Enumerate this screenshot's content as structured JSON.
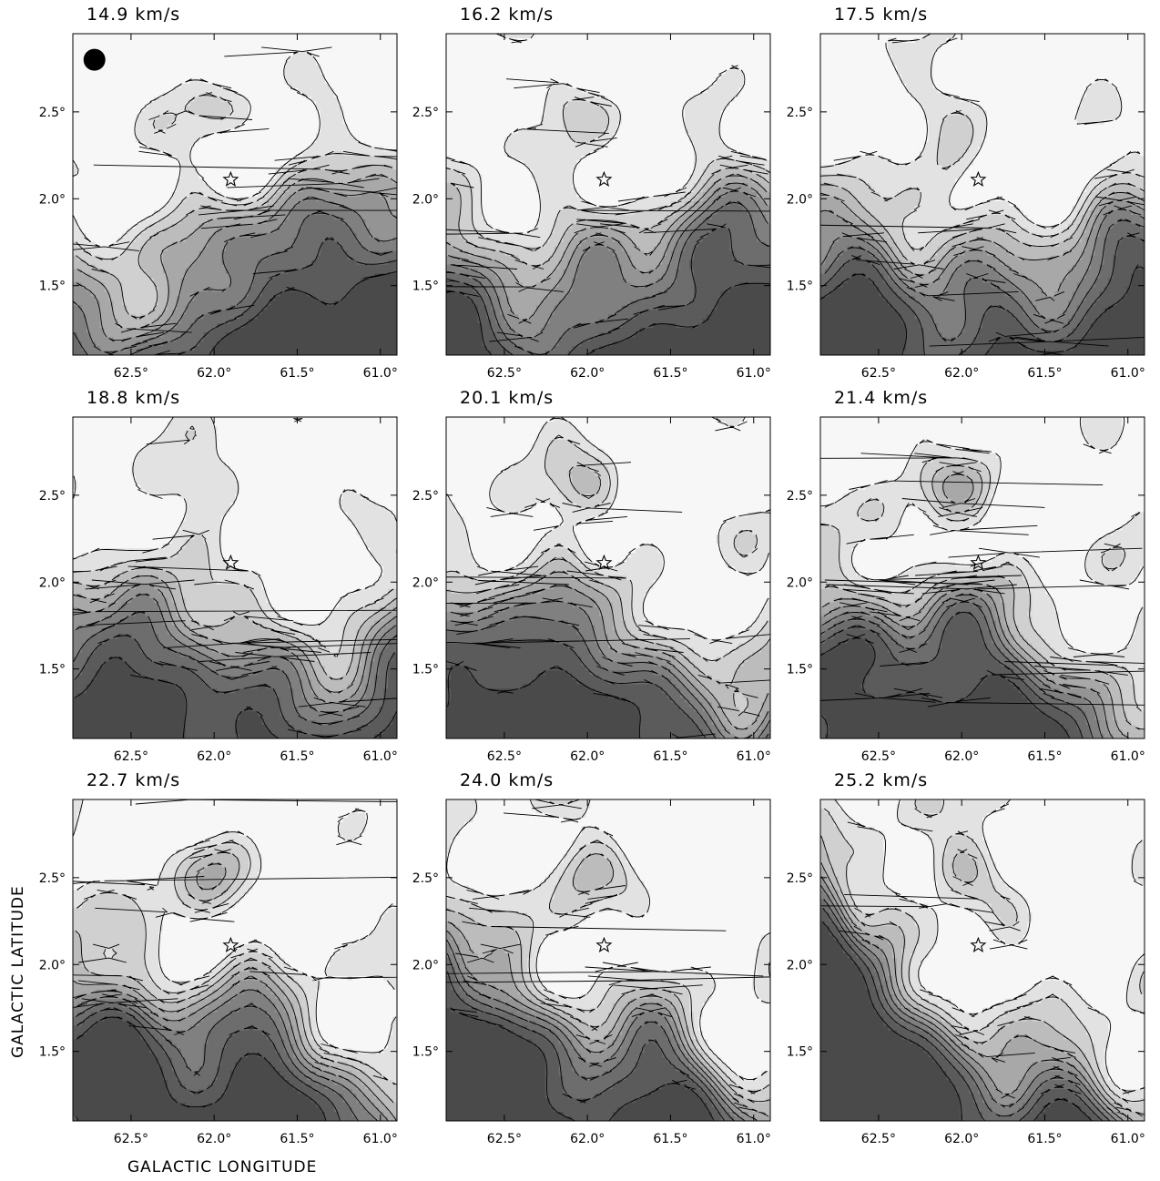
{
  "figure": {
    "xlabel": "GALACTIC LONGITUDE",
    "ylabel": "GALACTIC LATITUDE"
  },
  "chart_data": {
    "type": "heatmap",
    "description_type": "grid of contour/channel maps",
    "xlabel": "GALACTIC LONGITUDE",
    "ylabel": "GALACTIC LATITUDE",
    "xlim": [
      62.85,
      60.9
    ],
    "ylim": [
      1.1,
      2.95
    ],
    "x_ticks": [
      62.5,
      62.0,
      61.5,
      61.0
    ],
    "x_tick_labels": [
      "62.5°",
      "62.0°",
      "61.5°",
      "61.0°"
    ],
    "y_ticks": [
      1.5,
      2.0,
      2.5
    ],
    "y_tick_labels": [
      "1.5°",
      "2.0°",
      "2.5°"
    ],
    "marker": {
      "symbol": "star",
      "l": 61.9,
      "b": 2.11
    },
    "beam": {
      "l": 62.72,
      "b": 2.8
    },
    "colors": {
      "darkest": "#4a4a4a",
      "lightest": "#f7f7f7",
      "line": "#000000"
    },
    "panels": [
      {
        "label": "14.9 km/s",
        "velocity": 14.9
      },
      {
        "label": "16.2 km/s",
        "velocity": 16.2
      },
      {
        "label": "17.5 km/s",
        "velocity": 17.5
      },
      {
        "label": "18.8 km/s",
        "velocity": 18.8
      },
      {
        "label": "20.1 km/s",
        "velocity": 20.1
      },
      {
        "label": "21.4 km/s",
        "velocity": 21.4
      },
      {
        "label": "22.7 km/s",
        "velocity": 22.7
      },
      {
        "label": "24.0 km/s",
        "velocity": 24.0
      },
      {
        "label": "25.2 km/s",
        "velocity": 25.2
      }
    ]
  }
}
